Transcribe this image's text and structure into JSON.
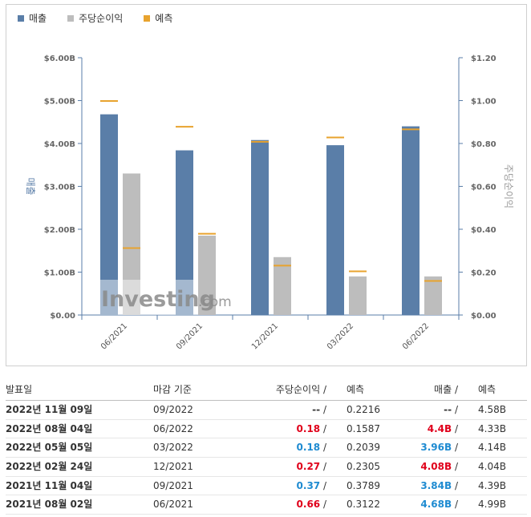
{
  "legend": [
    {
      "label": "매출",
      "color": "#5a7ea8"
    },
    {
      "label": "주당순이익",
      "color": "#bdbdbd"
    },
    {
      "label": "예측",
      "color": "#e8a32e"
    }
  ],
  "chart_data": {
    "type": "bar",
    "categories": [
      "06/2021",
      "09/2021",
      "12/2021",
      "03/2022",
      "06/2022"
    ],
    "series": [
      {
        "name": "매출",
        "axis": "left",
        "values": [
          4.68,
          3.84,
          4.08,
          3.96,
          4.4
        ],
        "color": "#5a7ea8"
      },
      {
        "name": "주당순이익",
        "axis": "right",
        "values": [
          0.66,
          0.37,
          0.27,
          0.18,
          0.18
        ],
        "color": "#bdbdbd"
      }
    ],
    "forecasts": {
      "매출": [
        4.99,
        4.39,
        4.04,
        4.14,
        4.33
      ],
      "주당순이익": [
        0.3122,
        0.3789,
        0.2305,
        0.2039,
        0.1587
      ],
      "color": "#e8a32e"
    },
    "left_axis": {
      "label": "매출",
      "ylim": [
        0,
        6
      ],
      "ticks": [
        "$0.00",
        "$1.00B",
        "$2.00B",
        "$3.00B",
        "$4.00B",
        "$5.00B",
        "$6.00B"
      ]
    },
    "right_axis": {
      "label": "주당순이익",
      "ylim": [
        0,
        1.2
      ],
      "ticks": [
        "$0.00",
        "$0.20",
        "$0.40",
        "$0.60",
        "$0.80",
        "$1.00",
        "$1.20"
      ]
    },
    "grid": false,
    "watermark": {
      "brand": "Investing",
      "suffix": ".com"
    }
  },
  "table": {
    "headers": {
      "date": "발표일",
      "period": "마감 기준",
      "eps": "주당순이익",
      "eps_forecast": "예측",
      "revenue": "매출",
      "revenue_forecast": "예측",
      "slash": "/"
    },
    "rows": [
      {
        "date": "2022년 11월 09일",
        "period": "09/2022",
        "eps": "--",
        "eps_class": "neu",
        "eps_forecast": "0.2216",
        "revenue": "--",
        "rev_class": "neu",
        "revenue_forecast": "4.58B"
      },
      {
        "date": "2022년 08월 04일",
        "period": "06/2022",
        "eps": "0.18",
        "eps_class": "pos",
        "eps_forecast": "0.1587",
        "revenue": "4.4B",
        "rev_class": "pos",
        "revenue_forecast": "4.33B"
      },
      {
        "date": "2022년 05월 05일",
        "period": "03/2022",
        "eps": "0.18",
        "eps_class": "neg",
        "eps_forecast": "0.2039",
        "revenue": "3.96B",
        "rev_class": "neg",
        "revenue_forecast": "4.14B"
      },
      {
        "date": "2022년 02월 24일",
        "period": "12/2021",
        "eps": "0.27",
        "eps_class": "pos",
        "eps_forecast": "0.2305",
        "revenue": "4.08B",
        "rev_class": "pos",
        "revenue_forecast": "4.04B"
      },
      {
        "date": "2021년 11월 04일",
        "period": "09/2021",
        "eps": "0.37",
        "eps_class": "neg",
        "eps_forecast": "0.3789",
        "revenue": "3.84B",
        "rev_class": "neg",
        "revenue_forecast": "4.39B"
      },
      {
        "date": "2021년 08월 02일",
        "period": "06/2021",
        "eps": "0.66",
        "eps_class": "pos",
        "eps_forecast": "0.3122",
        "revenue": "4.68B",
        "rev_class": "neg",
        "revenue_forecast": "4.99B"
      }
    ]
  }
}
